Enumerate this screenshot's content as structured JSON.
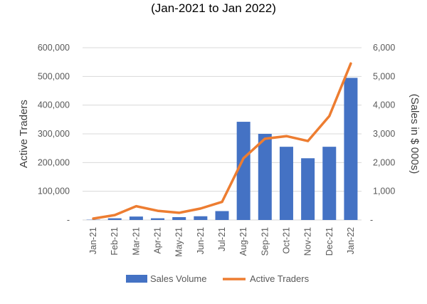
{
  "chart_data": {
    "type": "bar+line",
    "title": "(Jan-2021 to Jan 2022)",
    "categories": [
      "Jan-21",
      "Feb-21",
      "Mar-21",
      "Apr-21",
      "May-21",
      "Jun-21",
      "Jul-21",
      "Aug-21",
      "Sep-21",
      "Oct-21",
      "Nov-21",
      "Dec-21",
      "Jan-22"
    ],
    "series": [
      {
        "name": "Sales Volume",
        "kind": "bar",
        "axis": "right",
        "color": "#4472C4",
        "values": [
          10,
          60,
          120,
          60,
          100,
          130,
          310,
          3420,
          3000,
          2550,
          2150,
          2550,
          4950
        ]
      },
      {
        "name": "Active Traders",
        "kind": "line",
        "axis": "left",
        "color": "#ED7D31",
        "values": [
          5000,
          17000,
          48000,
          32000,
          25000,
          40000,
          63000,
          215000,
          283000,
          292000,
          275000,
          362000,
          545000
        ]
      }
    ],
    "y_left": {
      "label": "Active Traders",
      "range": [
        0,
        600000
      ],
      "ticks": [
        "-",
        "100,000",
        "200,000",
        "300,000",
        "400,000",
        "500,000",
        "600,000"
      ]
    },
    "y_right": {
      "label": "(Sales in $ 000s)",
      "range": [
        0,
        6000
      ],
      "ticks": [
        "-",
        "1,000",
        "2,000",
        "3,000",
        "4,000",
        "5,000",
        "6,000"
      ]
    },
    "grid": true,
    "legend_position": "bottom"
  }
}
